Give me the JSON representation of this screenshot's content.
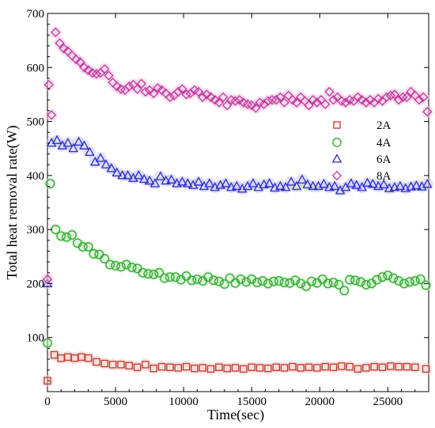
{
  "chart_data": {
    "type": "scatter",
    "xlabel": "Time(sec)",
    "ylabel": "Total heat removal rate(W)",
    "xlim": [
      0,
      28000
    ],
    "ylim": [
      0,
      700
    ],
    "x_ticks": [
      0,
      5000,
      10000,
      15000,
      20000,
      25000
    ],
    "y_ticks": [
      100,
      200,
      300,
      400,
      500,
      600,
      700
    ],
    "legend_position": "right",
    "series": [
      {
        "name": "2A",
        "marker": "square",
        "color": "#c0392b",
        "halo": "#f3c9c4",
        "x": [
          0,
          500,
          1000,
          1500,
          2000,
          2500,
          3000,
          3600,
          4200,
          4800,
          5400,
          6000,
          6600,
          7200,
          7800,
          8400,
          9000,
          9600,
          10200,
          10800,
          11400,
          12000,
          12600,
          13200,
          13800,
          14400,
          15000,
          15600,
          16200,
          16800,
          17400,
          18000,
          18600,
          19200,
          19800,
          20400,
          21000,
          21600,
          22200,
          22800,
          23400,
          24000,
          24600,
          25200,
          25800,
          26400,
          27000,
          27800
        ],
        "y": [
          20,
          68,
          62,
          64,
          62,
          64,
          62,
          55,
          52,
          50,
          50,
          48,
          45,
          50,
          43,
          46,
          45,
          44,
          46,
          43,
          44,
          42,
          45,
          43,
          44,
          42,
          45,
          44,
          43,
          45,
          44,
          46,
          44,
          45,
          44,
          46,
          45,
          47,
          46,
          42,
          44,
          46,
          45,
          47,
          46,
          46,
          45,
          42
        ]
      },
      {
        "name": "4A",
        "marker": "circle",
        "color": "#2ea82e",
        "halo": "#c9ecc4",
        "x": [
          0,
          200,
          600,
          1000,
          1400,
          1800,
          2200,
          2600,
          3000,
          3400,
          3800,
          4200,
          4600,
          5000,
          5400,
          5800,
          6200,
          6600,
          7000,
          7400,
          7800,
          8200,
          8600,
          9000,
          9400,
          9800,
          10200,
          10600,
          11000,
          11400,
          11800,
          12200,
          12600,
          13000,
          13400,
          13800,
          14200,
          14600,
          15000,
          15400,
          15800,
          16200,
          16600,
          17000,
          17400,
          17800,
          18200,
          18600,
          19000,
          19400,
          19800,
          20200,
          20600,
          21000,
          21400,
          21800,
          22200,
          22600,
          23000,
          23400,
          23800,
          24200,
          24600,
          25000,
          25400,
          25800,
          26200,
          26600,
          27000,
          27400,
          27800
        ],
        "y": [
          90,
          385,
          300,
          288,
          286,
          290,
          275,
          268,
          268,
          255,
          254,
          246,
          235,
          233,
          231,
          235,
          230,
          228,
          220,
          218,
          217,
          220,
          210,
          212,
          212,
          207,
          214,
          206,
          208,
          205,
          212,
          206,
          204,
          199,
          210,
          201,
          208,
          203,
          208,
          202,
          205,
          200,
          204,
          205,
          202,
          201,
          206,
          200,
          195,
          204,
          201,
          208,
          200,
          202,
          198,
          187,
          207,
          206,
          203,
          198,
          200,
          207,
          212,
          215,
          210,
          205,
          200,
          203,
          205,
          208,
          197
        ]
      },
      {
        "name": "6A",
        "marker": "triangle",
        "color": "#2c2cc8",
        "halo": "#c8c8f0",
        "x": [
          0,
          300,
          700,
          1100,
          1500,
          1900,
          2300,
          2700,
          3100,
          3500,
          3900,
          4300,
          4700,
          5100,
          5500,
          5900,
          6300,
          6700,
          7100,
          7500,
          7900,
          8300,
          8700,
          9100,
          9500,
          9900,
          10300,
          10700,
          11100,
          11500,
          11900,
          12300,
          12700,
          13100,
          13500,
          13900,
          14300,
          14700,
          15100,
          15500,
          15900,
          16300,
          16700,
          17100,
          17500,
          17900,
          18300,
          18700,
          19100,
          19500,
          19900,
          20300,
          20700,
          21100,
          21500,
          21900,
          22300,
          22700,
          23100,
          23500,
          23900,
          24300,
          24700,
          25100,
          25500,
          25900,
          26300,
          26700,
          27100,
          27500,
          27900
        ],
        "y": [
          200,
          460,
          465,
          455,
          460,
          450,
          462,
          455,
          443,
          425,
          432,
          420,
          413,
          405,
          400,
          400,
          395,
          400,
          393,
          390,
          385,
          398,
          390,
          392,
          385,
          388,
          385,
          382,
          388,
          380,
          385,
          378,
          382,
          385,
          378,
          380,
          375,
          380,
          385,
          378,
          383,
          385,
          377,
          380,
          378,
          388,
          380,
          392,
          383,
          380,
          380,
          384,
          378,
          380,
          372,
          378,
          385,
          382,
          378,
          386,
          384,
          380,
          383,
          376,
          378,
          380,
          376,
          379,
          381,
          379,
          384
        ]
      },
      {
        "name": "8A",
        "marker": "diamond",
        "color": "#c0399a",
        "halo": "#f2c6e6",
        "x": [
          0,
          100,
          300,
          600,
          900,
          1200,
          1500,
          1800,
          2100,
          2400,
          2700,
          3000,
          3300,
          3600,
          3900,
          4200,
          4500,
          4800,
          5100,
          5400,
          5700,
          6000,
          6300,
          6600,
          6900,
          7200,
          7500,
          7800,
          8100,
          8400,
          8700,
          9000,
          9300,
          9600,
          9900,
          10200,
          10500,
          10800,
          11100,
          11400,
          11700,
          12000,
          12300,
          12600,
          12900,
          13200,
          13500,
          13800,
          14100,
          14400,
          14700,
          15000,
          15300,
          15600,
          15900,
          16200,
          16500,
          16800,
          17100,
          17400,
          17700,
          18000,
          18300,
          18600,
          18900,
          19200,
          19500,
          19800,
          20100,
          20400,
          20700,
          21000,
          21300,
          21600,
          21900,
          22200,
          22500,
          22800,
          23100,
          23400,
          23700,
          24000,
          24300,
          24600,
          24900,
          25200,
          25500,
          25800,
          26100,
          26400,
          26700,
          27000,
          27300,
          27600,
          27900
        ],
        "y": [
          208,
          568,
          512,
          665,
          645,
          635,
          630,
          622,
          615,
          610,
          600,
          595,
          590,
          588,
          590,
          597,
          585,
          572,
          565,
          560,
          558,
          565,
          568,
          560,
          570,
          555,
          558,
          552,
          562,
          558,
          552,
          545,
          548,
          555,
          560,
          550,
          552,
          558,
          555,
          545,
          550,
          545,
          540,
          535,
          545,
          530,
          540,
          538,
          540,
          535,
          532,
          530,
          525,
          535,
          532,
          538,
          540,
          540,
          545,
          535,
          548,
          540,
          535,
          545,
          538,
          530,
          540,
          535,
          540,
          532,
          555,
          540,
          545,
          538,
          535,
          540,
          538,
          545,
          540,
          535,
          540,
          535,
          542,
          538,
          545,
          548,
          550,
          540,
          545,
          545,
          555,
          548,
          540,
          545,
          518
        ]
      }
    ]
  }
}
